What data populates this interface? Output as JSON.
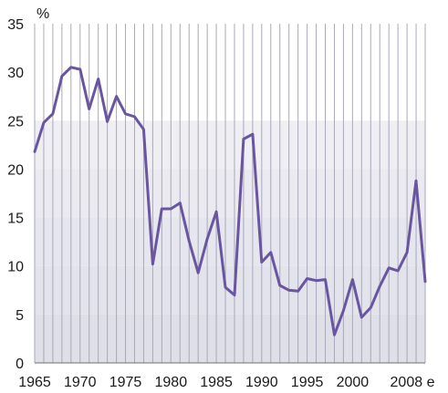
{
  "chart_data": {
    "type": "line",
    "title": "",
    "xlabel": "",
    "ylabel": "",
    "y_unit": "%",
    "x_range": [
      1965,
      2008
    ],
    "ylim": [
      0,
      35
    ],
    "x_ticks": [
      {
        "value": 1965,
        "label": "1965"
      },
      {
        "value": 1970,
        "label": "1970"
      },
      {
        "value": 1975,
        "label": "1975"
      },
      {
        "value": 1980,
        "label": "1980"
      },
      {
        "value": 1985,
        "label": "1985"
      },
      {
        "value": 1990,
        "label": "1990"
      },
      {
        "value": 1995,
        "label": "1995"
      },
      {
        "value": 2000,
        "label": "2000"
      },
      {
        "value": 2008,
        "label": "2008 e"
      }
    ],
    "y_ticks": [
      0,
      5,
      10,
      15,
      20,
      25,
      30,
      35
    ],
    "grid": {
      "vertical_every_year": true,
      "horizontal": false
    },
    "background_bands": true,
    "series": [
      {
        "color": "#6a55a0",
        "x": [
          1965,
          1966,
          1967,
          1968,
          1969,
          1970,
          1971,
          1972,
          1973,
          1974,
          1975,
          1976,
          1977,
          1978,
          1979,
          1980,
          1981,
          1982,
          1983,
          1984,
          1985,
          1986,
          1987,
          1988,
          1989,
          1990,
          1991,
          1992,
          1993,
          1994,
          1995,
          1996,
          1997,
          1998,
          1999,
          2000,
          2001,
          2002,
          2003,
          2004,
          2005,
          2006,
          2007,
          2008
        ],
        "y": [
          21.8,
          24.8,
          25.7,
          29.6,
          30.5,
          30.3,
          26.2,
          29.3,
          24.9,
          27.5,
          25.7,
          25.4,
          24.1,
          10.2,
          15.9,
          15.9,
          16.5,
          12.6,
          9.3,
          12.8,
          15.6,
          7.8,
          7.0,
          23.1,
          23.6,
          10.4,
          11.4,
          8.0,
          7.5,
          7.4,
          8.7,
          8.5,
          8.6,
          2.9,
          5.4,
          8.6,
          4.7,
          5.7,
          7.9,
          9.8,
          9.5,
          11.4,
          18.8,
          8.4
        ]
      }
    ]
  }
}
